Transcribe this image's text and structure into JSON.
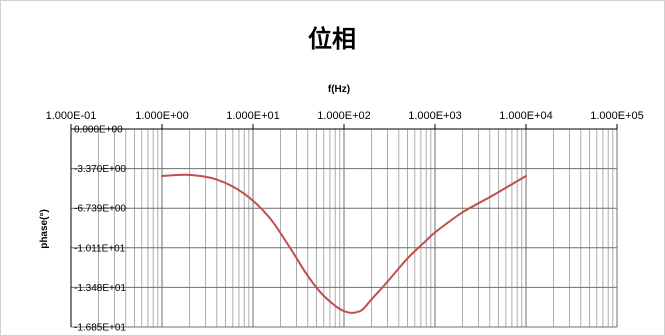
{
  "chart_data": {
    "type": "line",
    "title": "位相",
    "xlabel": "f(Hz)",
    "ylabel": "phase(°)",
    "x_scale": "log",
    "xlim": [
      0.1,
      100000
    ],
    "ylim": [
      -16.85,
      0
    ],
    "x_ticks": [
      0.1,
      1,
      10,
      100,
      1000,
      10000,
      100000
    ],
    "x_tick_labels": [
      "1.000E-01",
      "1.000E+00",
      "1.000E+01",
      "1.000E+02",
      "1.000E+03",
      "1.000E+04",
      "1.000E+05"
    ],
    "y_ticks": [
      0,
      -3.37,
      -6.739,
      -10.11,
      -13.48,
      -16.85
    ],
    "y_tick_labels": [
      "0.000E+00",
      "-3.370E+00",
      "-6.739E+00",
      "-1.011E+01",
      "-1.348E+01",
      "-1.685E+01"
    ],
    "grid": true,
    "legend": "none",
    "series": [
      {
        "color": "#c0504d",
        "x": [
          1,
          2,
          4,
          8,
          15,
          25,
          40,
          60,
          100,
          150,
          200,
          300,
          500,
          800,
          1000,
          2000,
          4000,
          7000,
          10000
        ],
        "y": [
          -4.0,
          -3.9,
          -4.3,
          -5.5,
          -7.5,
          -10.0,
          -12.5,
          -14.2,
          -15.5,
          -15.5,
          -14.5,
          -13.0,
          -11.0,
          -9.5,
          -8.8,
          -7.1,
          -5.8,
          -4.7,
          -4.0
        ]
      }
    ]
  }
}
